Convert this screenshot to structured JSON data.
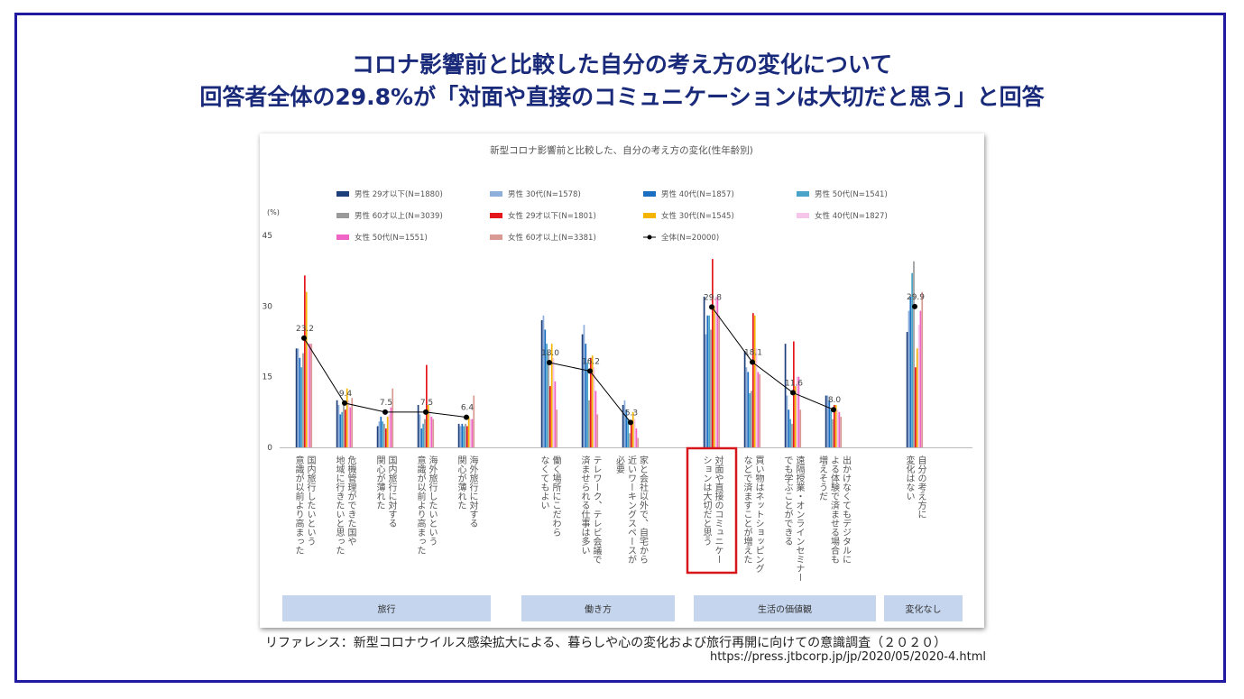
{
  "slide": {
    "title_line1": "コロナ影響前と比較した自分の考え方の変化について",
    "title_line2": "回答者全体の29.8%が「対面や直接のコミュニケーションは大切だと思う」と回答",
    "reference": "リファレンス：新型コロナウイルス感染拡大による、暮らしや心の変化および旅行再開に向けての意識調査（２０２０）",
    "url": "https://press.jtbcorp.jp/jp/2020/05/2020-4.html"
  },
  "chart_data": {
    "type": "bar",
    "title": "新型コロナ影響前と比較した、自分の考え方の変化(性年齢別)",
    "ylabel": "(%)",
    "ylim": [
      0,
      45
    ],
    "yticks": [
      "0",
      "15",
      "30",
      "45"
    ],
    "grid": false,
    "legend_position": "top",
    "categories": [
      "国内旅行したいという意識が以前より高まった",
      "危機管理ができた国や地域に行きたいと思った",
      "国内旅行に対する関心が薄れた",
      "海外旅行したいという意識が以前より高まった",
      "海外旅行に対する関心が薄れた",
      "働く場所にこだわらなくてもよい",
      "テレワーク、テレビ会議で済ませられる仕事は多い",
      "家と会社以外で、自宅から近いワーキングスペースが必要",
      "対面や直接のコミュニケーションは大切だと思う",
      "買い物はネットショッピングなどで済ますことが増えた",
      "遠隔授業・オンラインセミナーでも学ぶことができる",
      "出かけなくてもデジタルによる体験で済ませる場合も増えそうだ",
      "自分の考え方に変化はない"
    ],
    "category_lines": [
      [
        "国内旅行したいという",
        "意識が以前より高まった"
      ],
      [
        "危機管理ができた国や",
        "地域に行きたいと思った"
      ],
      [
        "国内旅行に対する",
        "関心が薄れた"
      ],
      [
        "海外旅行したいという",
        "意識が以前より高まった"
      ],
      [
        "海外旅行に対する",
        "関心が薄れた"
      ],
      [
        "働く場所にこだわら",
        "なくてもよい"
      ],
      [
        "テレワーク、テレビ会議で",
        "済ませられる仕事は多い"
      ],
      [
        "家と会社以外で、自宅から",
        "近いワーキングスペースが",
        "必要"
      ],
      [
        "対面や直接のコミュニケー",
        "ションは大切だと思う"
      ],
      [
        "買い物はネットショッピング",
        "などで済ますことが増えた"
      ],
      [
        "遠隔授業・オンラインセミナー",
        "でも学ぶことができる"
      ],
      [
        "出かけなくてもデジタルに",
        "よる体験で済ませる場合も",
        "増えそうだ"
      ],
      [
        "自分の考え方に",
        "変化はない"
      ]
    ],
    "highlighted_category": 8,
    "groups": [
      {
        "label": "旅行",
        "from": 0,
        "to": 4
      },
      {
        "label": "働き方",
        "from": 5,
        "to": 7
      },
      {
        "label": "生活の価値観",
        "from": 8,
        "to": 11
      },
      {
        "label": "変化なし",
        "from": 12,
        "to": 12
      }
    ],
    "series": [
      {
        "name": "男性 29才以下(N=1880)",
        "color": "#1f3f7a",
        "values": [
          21,
          10,
          4.5,
          9,
          5,
          27,
          24,
          9,
          32,
          20.5,
          22,
          11,
          24.5
        ]
      },
      {
        "name": "男性 30代(N=1578)",
        "color": "#8eaedc",
        "values": [
          21,
          9,
          5.5,
          7,
          4.5,
          28,
          26,
          10,
          24,
          17,
          11,
          11,
          29
        ]
      },
      {
        "name": "男性 40代(N=1857)",
        "color": "#1c6ec2",
        "values": [
          19,
          7,
          6.5,
          4,
          5,
          25,
          22,
          8,
          28,
          16,
          8,
          10,
          32
        ]
      },
      {
        "name": "男性 50代(N=1541)",
        "color": "#4aa3c8",
        "values": [
          17,
          7.5,
          5.5,
          5,
          4.5,
          22,
          18,
          6,
          28,
          11.5,
          6,
          8,
          37
        ]
      },
      {
        "name": "男性 60才以上(N=3039)",
        "color": "#9a9a9a",
        "values": [
          20,
          9.5,
          5,
          6,
          5,
          20,
          10,
          3,
          25,
          12,
          5,
          6,
          39.5
        ]
      },
      {
        "name": "女性 29才以下(N=1801)",
        "color": "#e4161b",
        "values": [
          36.5,
          8,
          4,
          17.5,
          4.5,
          13,
          19,
          5,
          40,
          28.5,
          22.5,
          9,
          17
        ]
      },
      {
        "name": "女性 30代(N=1545)",
        "color": "#f4b400",
        "values": [
          33,
          12.5,
          6.5,
          9,
          6.5,
          22,
          19.5,
          7.5,
          30,
          28,
          13,
          9,
          21
        ]
      },
      {
        "name": "女性 40代(N=1827)",
        "color": "#f6c6ea",
        "values": [
          22,
          10,
          7,
          8,
          6,
          19,
          17,
          6,
          32,
          21,
          15,
          8,
          26
        ]
      },
      {
        "name": "女性 50代(N=1551)",
        "color": "#f064c6",
        "values": [
          22,
          8.5,
          8.5,
          6.5,
          6,
          14,
          12,
          4,
          32,
          16,
          15,
          7.5,
          29
        ]
      },
      {
        "name": "女性 60才以上(N=3381)",
        "color": "#d99a94",
        "values": [
          22,
          10.5,
          12.5,
          6,
          11,
          8,
          7,
          2,
          28,
          15.5,
          8,
          6.5,
          33
        ]
      }
    ],
    "line_series": {
      "name": "全体(N=20000)",
      "color": "#000000",
      "values": [
        23.2,
        9.4,
        7.5,
        7.5,
        6.4,
        18.0,
        16.2,
        5.3,
        29.8,
        18.1,
        11.6,
        8.0,
        29.9
      ],
      "labels": [
        "23.2",
        "9.4",
        "7.5",
        "7.5",
        "6.4",
        "18.0",
        "16.2",
        "5.3",
        "29.8",
        "18.1",
        "11.6",
        "8.0",
        "29.9"
      ]
    }
  }
}
